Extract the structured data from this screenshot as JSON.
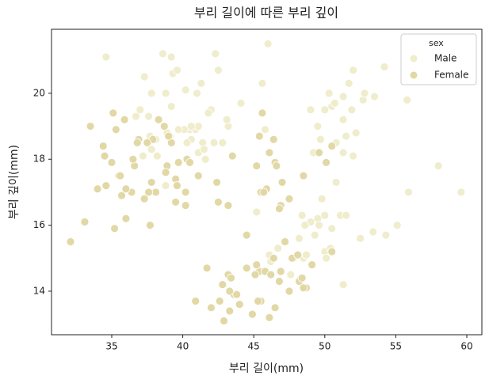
{
  "chart_data": {
    "type": "scatter",
    "title": "부리 길이에 따른 부리 깊이",
    "x_label": "부리 길이(mm)",
    "y_label": "부리 깊이(mm)",
    "xlim": [
      30.76,
      61.06
    ],
    "ylim": [
      12.68,
      21.94
    ],
    "xticks": [
      35,
      40,
      45,
      50,
      55,
      60
    ],
    "yticks": [
      14,
      16,
      18,
      20
    ],
    "grid": false,
    "legend_title": "sex",
    "legend_position": "upper right",
    "marker_edge_color": "#ffffff",
    "series": [
      {
        "name": "Male",
        "color": "#efedcc",
        "x": [
          39.1,
          39.3,
          39.2,
          38.6,
          34.6,
          42.5,
          46,
          37.8,
          37.7,
          38.2,
          38.8,
          40.6,
          40.5,
          37.2,
          40.9,
          39.2,
          38.8,
          42.2,
          39.6,
          45.8,
          41.1,
          42.3,
          40.1,
          42,
          41.4,
          40.6,
          37.6,
          41.3,
          41.1,
          41.8,
          39.7,
          43.2,
          38.1,
          44.1,
          41.5,
          36.7,
          37.3,
          40.2,
          41,
          37,
          41.6,
          42.8,
          38.9,
          43.1,
          37.8,
          45.6,
          40.3,
          50,
          51.3,
          52.7,
          51.3,
          51.3,
          51.7,
          52,
          50.5,
          50.3,
          49,
          52,
          53.5,
          49.5,
          50.8,
          52.2,
          54.2,
          55.8,
          50.7,
          49.7,
          51.5,
          51.9,
          49.2,
          52.8,
          50,
          50,
          47.6,
          46.7,
          46.1,
          50.4,
          54.3,
          49.8,
          49.5,
          52.5,
          50.8,
          55.9,
          59.6,
          48.4,
          51.1,
          48.5,
          49,
          51.3,
          53.4,
          49.6,
          50.5,
          45.2,
          48.7,
          49.3,
          55.1,
          50.1,
          47.8,
          51.5,
          48.6,
          46.2,
          58,
          48.2
        ],
        "values": [
          18.7,
          20.6,
          19.6,
          21.2,
          21.1,
          20.7,
          21.5,
          18.3,
          18.7,
          18.1,
          17.2,
          18.6,
          18.9,
          18.1,
          18.9,
          21.1,
          20,
          18.5,
          20.7,
          18.9,
          19,
          21.2,
          18.9,
          19.5,
          18.5,
          19,
          19.3,
          20.3,
          18.2,
          19.4,
          18.9,
          19,
          18.6,
          19.7,
          18.3,
          19.3,
          20.5,
          20.1,
          20,
          19.5,
          18,
          18.5,
          18.8,
          19.2,
          20,
          20.3,
          18.5,
          19.5,
          19.2,
          19.8,
          18.2,
          19.9,
          20.3,
          18.1,
          19.6,
          20,
          19.5,
          20.7,
          19.9,
          19,
          18.5,
          18.8,
          20.8,
          19.8,
          19.7,
          18.6,
          18.7,
          19.5,
          18.2,
          20,
          16.3,
          15.2,
          14.5,
          15.3,
          15.1,
          15.3,
          15.7,
          16.8,
          16.2,
          15.6,
          17.3,
          17,
          17,
          16.3,
          16.3,
          15,
          16.1,
          14.2,
          15.8,
          16,
          15.9,
          16.4,
          15.1,
          15.7,
          16,
          15,
          15,
          16.3,
          16,
          14.9,
          17.8,
          15.6
        ]
      },
      {
        "name": "Female",
        "color": "#e2d8a6",
        "x": [
          39.5,
          40.3,
          38.9,
          36.6,
          38.7,
          34.4,
          35.9,
          35.3,
          40.5,
          37.9,
          39.5,
          36.4,
          35.7,
          38.8,
          36.5,
          36.9,
          34.5,
          33.5,
          35.5,
          32.1,
          33.1,
          34.6,
          35,
          36,
          37.8,
          37.3,
          35.6,
          36,
          35.2,
          39.2,
          38.1,
          37.5,
          35.1,
          40.2,
          39,
          41.1,
          37.7,
          38.3,
          39.7,
          36.8,
          39.6,
          37.6,
          40.2,
          34,
          46.5,
          45.4,
          45.2,
          46.1,
          46.6,
          47,
          45.9,
          42.4,
          43.2,
          46.4,
          45.6,
          48.5,
          47.5,
          50.5,
          45.5,
          46.9,
          42.5,
          45.7,
          49.6,
          46.8,
          50.1,
          43.5,
          46.1,
          48.7,
          46.5,
          45.4,
          43.3,
          40.9,
          45.5,
          45.8,
          42,
          46.2,
          45.1,
          42.9,
          48.2,
          42.8,
          49.1,
          42.6,
          44,
          45.3,
          43.6,
          44.9,
          43.8,
          43.2,
          46.9,
          48.4,
          48.5,
          47.2,
          41.7,
          43.3,
          50.5,
          47.5,
          47.7,
          46.4,
          48.1,
          45.2,
          46.8,
          44.5,
          44.5,
          43.4
        ],
        "values": [
          17.4,
          18,
          17.8,
          17.8,
          19,
          18.4,
          19.2,
          18.9,
          17.9,
          18.6,
          16.7,
          17,
          16.9,
          17.6,
          18,
          18.6,
          18.1,
          19,
          17.5,
          15.5,
          16.1,
          17.2,
          17.9,
          17.1,
          17.3,
          16.8,
          17.5,
          16.2,
          15.9,
          18.5,
          17,
          18.5,
          19.4,
          17,
          18.7,
          17.5,
          16,
          19.2,
          17.9,
          18.5,
          17.2,
          17,
          16.6,
          17.1,
          17.9,
          18.7,
          17.8,
          18.2,
          17.8,
          17.3,
          17.1,
          17.3,
          16.6,
          18.6,
          19.4,
          17.5,
          16.8,
          18.4,
          17,
          16.6,
          16.7,
          17,
          18.2,
          16.5,
          17.9,
          18.1,
          13.2,
          14.1,
          13.5,
          14.6,
          13.4,
          13.7,
          13.7,
          14.6,
          13.5,
          14.5,
          14.5,
          13.1,
          14.3,
          14.2,
          14.8,
          13.7,
          13.6,
          13.7,
          13.9,
          13.3,
          13.9,
          14.5,
          14.6,
          14.4,
          14.1,
          15.5,
          14.7,
          14,
          15.2,
          14,
          15,
          15,
          15.1,
          14.8,
          14.3,
          14.7,
          15.7,
          14.4
        ]
      }
    ]
  }
}
